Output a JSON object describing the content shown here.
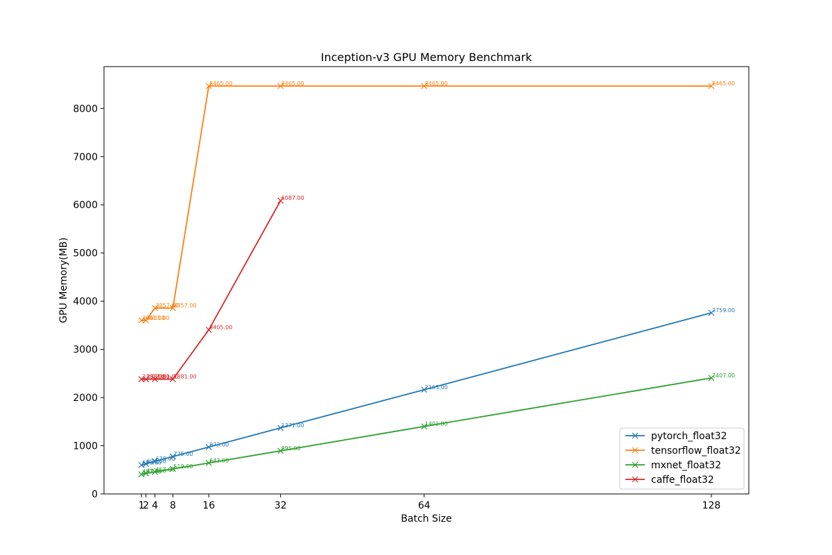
{
  "chart_data": {
    "type": "line",
    "title": "Inception-v3 GPU Memory Benchmark",
    "xlabel": "Batch Size",
    "ylabel": "GPU Memory(MB)",
    "x": [
      1,
      2,
      4,
      8,
      16,
      32,
      64,
      128
    ],
    "xticks": [
      1,
      2,
      4,
      8,
      16,
      32,
      64,
      128
    ],
    "yticks": [
      0,
      1000,
      2000,
      3000,
      4000,
      5000,
      6000,
      7000,
      8000
    ],
    "xlim": [
      -7.35,
      136.35
    ],
    "ylim": [
      0,
      8868
    ],
    "grid": false,
    "legend_position": "lower-right",
    "marker": "x",
    "series": [
      {
        "name": "pytorch_float32",
        "color": "#1f77b4",
        "x": [
          1,
          2,
          4,
          8,
          16,
          32,
          64,
          128
        ],
        "values": [
          601,
          624,
          678,
          775,
          973,
          1371,
          2163,
          3759
        ],
        "labels": [
          "601.00",
          "624.00",
          "678.00",
          "775.00",
          "973.00",
          "1371.00",
          "2163.00",
          "3759.00"
        ]
      },
      {
        "name": "tensorflow_float32",
        "color": "#ff7f0e",
        "x": [
          1,
          2,
          4,
          8,
          16,
          32,
          64,
          128
        ],
        "values": [
          3601,
          3601,
          3857,
          3857,
          8465,
          8465,
          8465,
          8465
        ],
        "labels": [
          "3601.00",
          "3601.00",
          "3857.00",
          "3857.00",
          "8465.00",
          "8465.00",
          "8465.00",
          "8465.00"
        ]
      },
      {
        "name": "mxnet_float32",
        "color": "#2ca02c",
        "x": [
          1,
          2,
          4,
          8,
          16,
          32,
          64,
          128
        ],
        "values": [
          407,
          427,
          457,
          519,
          643,
          895,
          1401,
          2407
        ],
        "labels": [
          "407.00",
          "427.00",
          "457.00",
          "519.00",
          "643.00",
          "895.00",
          "1401.00",
          "2407.00"
        ]
      },
      {
        "name": "caffe_float32",
        "color": "#d62728",
        "x": [
          1,
          2,
          4,
          8,
          16,
          32
        ],
        "values": [
          2381,
          2381,
          2381,
          2381,
          3405,
          6087
        ],
        "labels": [
          "2381.00",
          "2381.00",
          "2381.00",
          "2381.00",
          "3405.00",
          "6087.00"
        ]
      }
    ]
  }
}
